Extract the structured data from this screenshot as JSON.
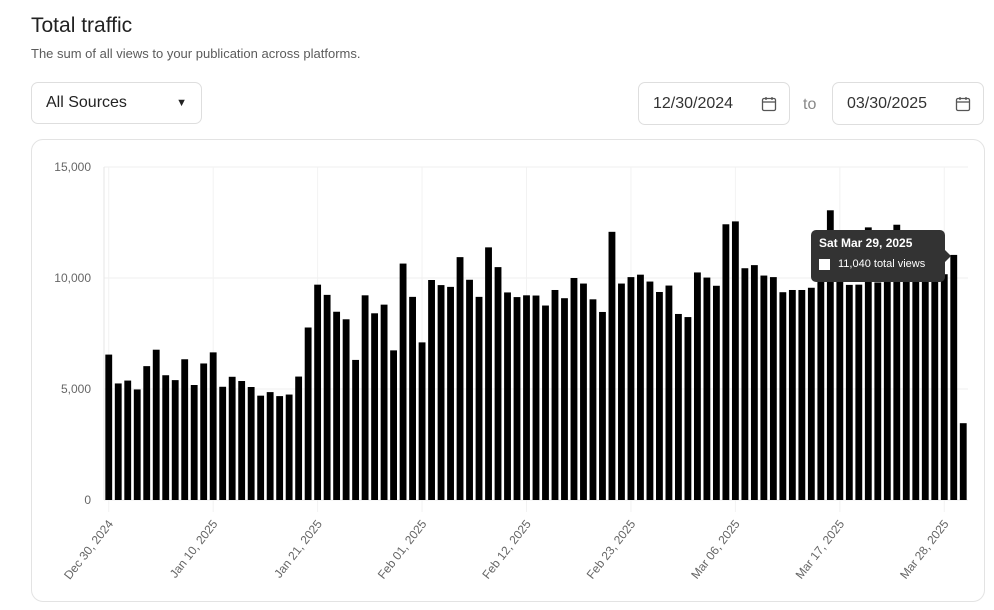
{
  "header": {
    "title": "Total traffic",
    "subtitle": "The sum of all views to your publication across platforms."
  },
  "filters": {
    "source": "All Sources",
    "date_from": "12/30/2024",
    "to_label": "to",
    "date_to": "03/30/2025"
  },
  "tooltip": {
    "date": "Sat Mar 29, 2025",
    "value": "11,040 total views"
  },
  "chart_data": {
    "type": "bar",
    "bar_color": "#000000",
    "grid": true,
    "ylim": [
      0,
      15000
    ],
    "yticks": [
      "0",
      "5,000",
      "10,000",
      "15,000"
    ],
    "xticks": [
      "Dec 30, 2024",
      "Jan 10, 2025",
      "Jan 21, 2025",
      "Feb 01, 2025",
      "Feb 12, 2025",
      "Feb 23, 2025",
      "Mar 06, 2025",
      "Mar 17, 2025",
      "Mar 28, 2025"
    ],
    "x": [
      "2024-12-30",
      "2024-12-31",
      "2025-01-01",
      "2025-01-02",
      "2025-01-03",
      "2025-01-04",
      "2025-01-05",
      "2025-01-06",
      "2025-01-07",
      "2025-01-08",
      "2025-01-09",
      "2025-01-10",
      "2025-01-11",
      "2025-01-12",
      "2025-01-13",
      "2025-01-14",
      "2025-01-15",
      "2025-01-16",
      "2025-01-17",
      "2025-01-18",
      "2025-01-19",
      "2025-01-20",
      "2025-01-21",
      "2025-01-22",
      "2025-01-23",
      "2025-01-24",
      "2025-01-25",
      "2025-01-26",
      "2025-01-27",
      "2025-01-28",
      "2025-01-29",
      "2025-01-30",
      "2025-01-31",
      "2025-02-01",
      "2025-02-02",
      "2025-02-03",
      "2025-02-04",
      "2025-02-05",
      "2025-02-06",
      "2025-02-07",
      "2025-02-08",
      "2025-02-09",
      "2025-02-10",
      "2025-02-11",
      "2025-02-12",
      "2025-02-13",
      "2025-02-14",
      "2025-02-15",
      "2025-02-16",
      "2025-02-17",
      "2025-02-18",
      "2025-02-19",
      "2025-02-20",
      "2025-02-21",
      "2025-02-22",
      "2025-02-23",
      "2025-02-24",
      "2025-02-25",
      "2025-02-26",
      "2025-02-27",
      "2025-02-28",
      "2025-03-01",
      "2025-03-02",
      "2025-03-03",
      "2025-03-04",
      "2025-03-05",
      "2025-03-06",
      "2025-03-07",
      "2025-03-08",
      "2025-03-09",
      "2025-03-10",
      "2025-03-11",
      "2025-03-12",
      "2025-03-13",
      "2025-03-14",
      "2025-03-15",
      "2025-03-16",
      "2025-03-17",
      "2025-03-18",
      "2025-03-19",
      "2025-03-20",
      "2025-03-21",
      "2025-03-22",
      "2025-03-23",
      "2025-03-24",
      "2025-03-25",
      "2025-03-26",
      "2025-03-27",
      "2025-03-28",
      "2025-03-29",
      "2025-03-30"
    ],
    "series": [
      {
        "values": [
          6550,
          5250,
          5380,
          4980,
          6030,
          6770,
          5620,
          5400,
          6340,
          5180,
          6150,
          6650,
          5100,
          5550,
          5360,
          5090,
          4700,
          4860,
          4680,
          4750,
          5560,
          7770,
          9700,
          9240,
          8480,
          8140,
          6310,
          9220,
          8410,
          8800,
          6740,
          10650,
          9150,
          7100,
          9910,
          9680,
          9600,
          10940,
          9920,
          9150,
          11380,
          10490,
          9350,
          9140,
          9220,
          9210,
          8760,
          9460,
          9090,
          10000,
          9750,
          9040,
          8470,
          12080,
          9750,
          10040,
          10150,
          9840,
          9370,
          9660,
          8380,
          8240,
          10250,
          10020,
          9650,
          12420,
          12550,
          10440,
          10580,
          10110,
          10040,
          9360,
          9460,
          9460,
          9560,
          11030,
          13050,
          10850,
          9690,
          9700,
          12280,
          9800,
          10530,
          12400,
          11140,
          10960,
          10060,
          10200,
          10170,
          11040,
          3460
        ]
      }
    ]
  }
}
